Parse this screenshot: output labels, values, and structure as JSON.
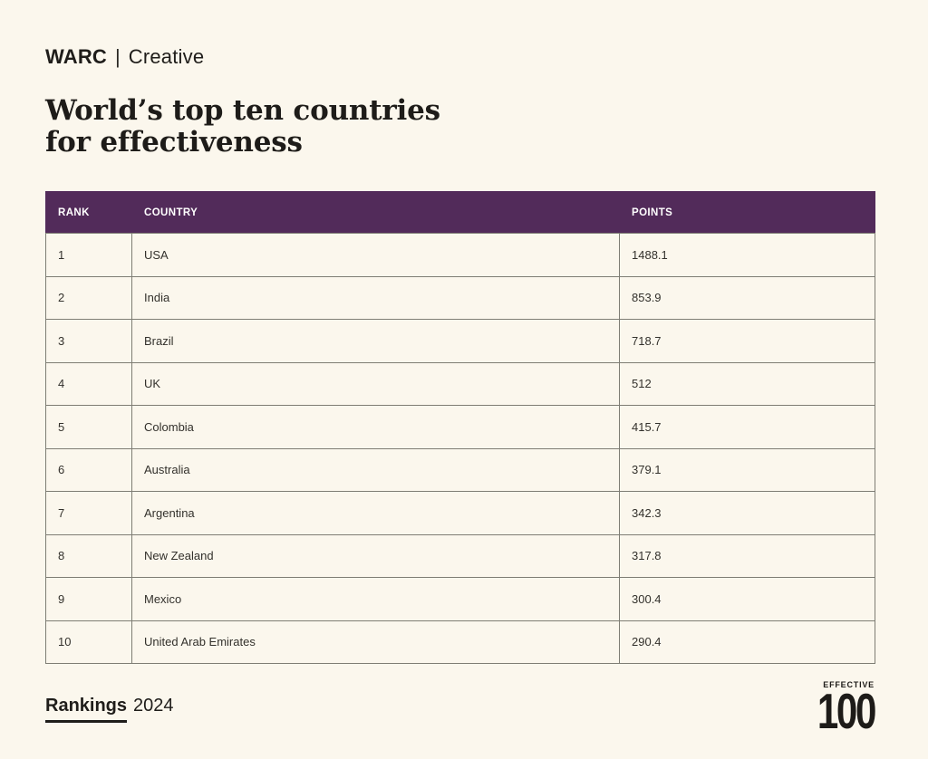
{
  "page": {
    "background": "#FBF7ED",
    "accent_purple": "#522B5A",
    "border_color": "#7E7D74",
    "text_color": "#1F1D1A"
  },
  "header": {
    "brand": "WARC",
    "brand_divider": "|",
    "brand_sub": "Creative",
    "title_line1": "World’s top ten countries",
    "title_line2": "for effectiveness"
  },
  "table": {
    "columns": [
      "RANK",
      "COUNTRY",
      "POINTS"
    ],
    "rows": [
      {
        "rank": "1",
        "country": "USA",
        "points": "1488.1"
      },
      {
        "rank": "2",
        "country": "India",
        "points": "853.9"
      },
      {
        "rank": "3",
        "country": "Brazil",
        "points": "718.7"
      },
      {
        "rank": "4",
        "country": "UK",
        "points": "512"
      },
      {
        "rank": "5",
        "country": "Colombia",
        "points": "415.7"
      },
      {
        "rank": "6",
        "country": "Australia",
        "points": "379.1"
      },
      {
        "rank": "7",
        "country": "Argentina",
        "points": "342.3"
      },
      {
        "rank": "8",
        "country": "New Zealand",
        "points": "317.8"
      },
      {
        "rank": "9",
        "country": "Mexico",
        "points": "300.4"
      },
      {
        "rank": "10",
        "country": "United Arab Emirates",
        "points": "290.4"
      }
    ]
  },
  "footer": {
    "rankings_label": "Rankings",
    "year": "2024",
    "logo_word": "EFFECTIVE",
    "logo_number": "100"
  },
  "chart_data": {
    "type": "table",
    "title": "World’s top ten countries for effectiveness",
    "columns": [
      "RANK",
      "COUNTRY",
      "POINTS"
    ],
    "categories": [
      "USA",
      "India",
      "Brazil",
      "UK",
      "Colombia",
      "Australia",
      "Argentina",
      "New Zealand",
      "Mexico",
      "United Arab Emirates"
    ],
    "values": [
      1488.1,
      853.9,
      718.7,
      512,
      415.7,
      379.1,
      342.3,
      317.8,
      300.4,
      290.4
    ],
    "ranks": [
      1,
      2,
      3,
      4,
      5,
      6,
      7,
      8,
      9,
      10
    ],
    "source": "WARC Creative Rankings 2024"
  }
}
